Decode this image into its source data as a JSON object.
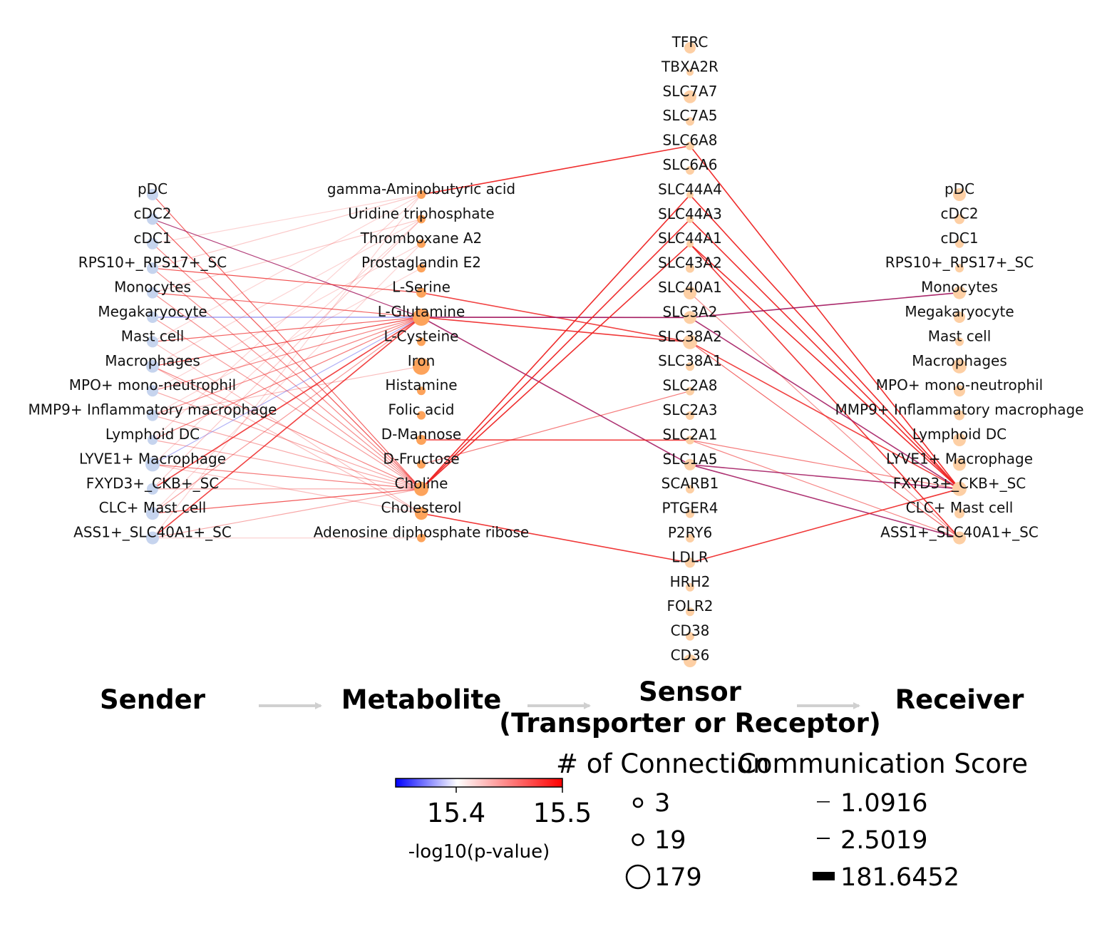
{
  "columns": {
    "sender": [
      "pDC",
      "cDC2",
      "cDC1",
      "RPS10+_RPS17+_SC",
      "Monocytes",
      "Megakaryocyte",
      "Mast cell",
      "Macrophages",
      "MPO+ mono-neutrophil",
      "MMP9+ Inflammatory macrophage",
      "Lymphoid DC",
      "LYVE1+ Macrophage",
      "FXYD3+_CKB+_SC",
      "CLC+ Mast cell",
      "ASS1+_SLC40A1+_SC"
    ],
    "metabolite": [
      "gamma-Aminobutyric acid",
      "Uridine triphosphate",
      "Thromboxane A2",
      "Prostaglandin E2",
      "L-Serine",
      "L-Glutamine",
      "L-Cysteine",
      "Iron",
      "Histamine",
      "Folic acid",
      "D-Mannose",
      "D-Fructose",
      "Choline",
      "Cholesterol",
      "Adenosine diphosphate ribose"
    ],
    "sensor": [
      "TFRC",
      "TBXA2R",
      "SLC7A7",
      "SLC7A5",
      "SLC6A8",
      "SLC6A6",
      "SLC44A4",
      "SLC44A3",
      "SLC44A1",
      "SLC43A2",
      "SLC40A1",
      "SLC3A2",
      "SLC38A2",
      "SLC38A1",
      "SLC2A8",
      "SLC2A3",
      "SLC2A1",
      "SLC1A5",
      "SCARB1",
      "PTGER4",
      "P2RY6",
      "LDLR",
      "HRH2",
      "FOLR2",
      "CD38",
      "CD36"
    ],
    "receiver": [
      "pDC",
      "cDC2",
      "cDC1",
      "RPS10+_RPS17+_SC",
      "Monocytes",
      "Megakaryocyte",
      "Mast cell",
      "Macrophages",
      "MPO+ mono-neutrophil",
      "MMP9+ Inflammatory macrophage",
      "Lymphoid DC",
      "LYVE1+ Macrophage",
      "FXYD3+_CKB+_SC",
      "CLC+ Mast cell",
      "ASS1+_SLC40A1+_SC"
    ]
  },
  "headers": {
    "sender": "Sender",
    "metabolite": "Metabolite",
    "sensor_line1": "Sensor",
    "sensor_line2": "(Transporter or Receptor)",
    "receiver": "Receiver"
  },
  "colorbar": {
    "label": "-log10(p-value)",
    "ticks": [
      "15.4",
      "15.5"
    ],
    "min_color": "#0000ff",
    "mid_color": "#ffffff",
    "max_color": "#ff0000"
  },
  "legend_connections": {
    "title": "# of Connection",
    "items": [
      {
        "label": "3",
        "value": 3
      },
      {
        "label": "19",
        "value": 19
      },
      {
        "label": "179",
        "value": 179
      }
    ]
  },
  "legend_score": {
    "title": "Communication Score",
    "items": [
      {
        "label": "1.0916",
        "value": 1.0916
      },
      {
        "label": "2.5019",
        "value": 2.5019
      },
      {
        "label": "181.6452",
        "value": 181.6452
      }
    ]
  },
  "colors": {
    "sender_node": "#c6d4ee",
    "metabolite_node": "#fda35b",
    "sensor_node": "#fdcfa4",
    "receiver_node": "#fdcfa4",
    "arrow": "#d0d0d0",
    "edge_red": "#ee2222",
    "edge_purple": "#a0105a",
    "edge_blue": "#7070ee"
  },
  "edges_sender_metabolite": [
    {
      "from": "pDC",
      "to": "Choline",
      "color": "#ee2222",
      "opacity": 0.7
    },
    {
      "from": "cDC2",
      "to": "Choline",
      "color": "#ee2222",
      "opacity": 0.75
    },
    {
      "from": "cDC2",
      "to": "L-Glutamine",
      "color": "#a0105a",
      "opacity": 0.8
    },
    {
      "from": "cDC1",
      "to": "gamma-Aminobutyric acid",
      "color": "#ee2222",
      "opacity": 0.2
    },
    {
      "from": "cDC1",
      "to": "Choline",
      "color": "#ee2222",
      "opacity": 0.55
    },
    {
      "from": "RPS10+_RPS17+_SC",
      "to": "L-Serine",
      "color": "#ee2222",
      "opacity": 0.8
    },
    {
      "from": "RPS10+_RPS17+_SC",
      "to": "Choline",
      "color": "#ee2222",
      "opacity": 0.5
    },
    {
      "from": "RPS10+_RPS17+_SC",
      "to": "gamma-Aminobutyric acid",
      "color": "#ee2222",
      "opacity": 0.25
    },
    {
      "from": "Monocytes",
      "to": "L-Glutamine",
      "color": "#ee2222",
      "opacity": 0.7
    },
    {
      "from": "Monocytes",
      "to": "Choline",
      "color": "#ee2222",
      "opacity": 0.5
    },
    {
      "from": "Monocytes",
      "to": "Uridine triphosphate",
      "color": "#ee2222",
      "opacity": 0.25
    },
    {
      "from": "Megakaryocyte",
      "to": "L-Glutamine",
      "color": "#7070ee",
      "opacity": 0.8
    },
    {
      "from": "Megakaryocyte",
      "to": "Choline",
      "color": "#ee2222",
      "opacity": 0.45
    },
    {
      "from": "Mast cell",
      "to": "L-Glutamine",
      "color": "#ee2222",
      "opacity": 0.7
    },
    {
      "from": "Mast cell",
      "to": "Cholesterol",
      "color": "#ee2222",
      "opacity": 0.3
    },
    {
      "from": "Mast cell",
      "to": "gamma-Aminobutyric acid",
      "color": "#ee2222",
      "opacity": 0.2
    },
    {
      "from": "Macrophages",
      "to": "L-Glutamine",
      "color": "#ee2222",
      "opacity": 0.8
    },
    {
      "from": "Macrophages",
      "to": "Choline",
      "color": "#ee2222",
      "opacity": 0.55
    },
    {
      "from": "Macrophages",
      "to": "Cholesterol",
      "color": "#ee2222",
      "opacity": 0.3
    },
    {
      "from": "Macrophages",
      "to": "Uridine triphosphate",
      "color": "#ee2222",
      "opacity": 0.2
    },
    {
      "from": "MPO+ mono-neutrophil",
      "to": "L-Glutamine",
      "color": "#ee2222",
      "opacity": 0.55
    },
    {
      "from": "MPO+ mono-neutrophil",
      "to": "Thromboxane A2",
      "color": "#ee2222",
      "opacity": 0.2
    },
    {
      "from": "MPO+ mono-neutrophil",
      "to": "Choline",
      "color": "#ee2222",
      "opacity": 0.4
    },
    {
      "from": "MMP9+ Inflammatory macrophage",
      "to": "L-Glutamine",
      "color": "#ee2222",
      "opacity": 0.55
    },
    {
      "from": "MMP9+ Inflammatory macrophage",
      "to": "Iron",
      "color": "#ee2222",
      "opacity": 0.3
    },
    {
      "from": "MMP9+ Inflammatory macrophage",
      "to": "Choline",
      "color": "#ee2222",
      "opacity": 0.4
    },
    {
      "from": "MMP9+ Inflammatory macrophage",
      "to": "Prostaglandin E2",
      "color": "#ee2222",
      "opacity": 0.2
    },
    {
      "from": "Lymphoid DC",
      "to": "L-Glutamine",
      "color": "#ee2222",
      "opacity": 0.6
    },
    {
      "from": "Lymphoid DC",
      "to": "gamma-Aminobutyric acid",
      "color": "#ee2222",
      "opacity": 0.2
    },
    {
      "from": "Lymphoid DC",
      "to": "Choline",
      "color": "#ee2222",
      "opacity": 0.4
    },
    {
      "from": "LYVE1+ Macrophage",
      "to": "L-Glutamine",
      "color": "#7070ee",
      "opacity": 0.55
    },
    {
      "from": "LYVE1+ Macrophage",
      "to": "Choline",
      "color": "#ee2222",
      "opacity": 0.6
    },
    {
      "from": "LYVE1+ Macrophage",
      "to": "Cholesterol",
      "color": "#ee2222",
      "opacity": 0.3
    },
    {
      "from": "LYVE1+ Macrophage",
      "to": "Uridine triphosphate",
      "color": "#ee2222",
      "opacity": 0.2
    },
    {
      "from": "FXYD3+_CKB+_SC",
      "to": "L-Glutamine",
      "color": "#ee2222",
      "opacity": 0.85
    },
    {
      "from": "FXYD3+_CKB+_SC",
      "to": "Uridine triphosphate",
      "color": "#ee2222",
      "opacity": 0.25
    },
    {
      "from": "FXYD3+_CKB+_SC",
      "to": "Choline",
      "color": "#ee2222",
      "opacity": 0.4
    },
    {
      "from": "CLC+ Mast cell",
      "to": "Choline",
      "color": "#ee2222",
      "opacity": 0.75
    },
    {
      "from": "CLC+ Mast cell",
      "to": "L-Glutamine",
      "color": "#ee2222",
      "opacity": 0.45
    },
    {
      "from": "CLC+ Mast cell",
      "to": "Thromboxane A2",
      "color": "#ee2222",
      "opacity": 0.2
    },
    {
      "from": "ASS1+_SLC40A1+_SC",
      "to": "L-Glutamine",
      "color": "#ee2222",
      "opacity": 0.85
    },
    {
      "from": "ASS1+_SLC40A1+_SC",
      "to": "Adenosine diphosphate ribose",
      "color": "#ee2222",
      "opacity": 0.2
    },
    {
      "from": "ASS1+_SLC40A1+_SC",
      "to": "gamma-Aminobutyric acid",
      "color": "#ee2222",
      "opacity": 0.2
    },
    {
      "from": "ASS1+_SLC40A1+_SC",
      "to": "Choline",
      "color": "#ee2222",
      "opacity": 0.4
    }
  ],
  "edges_metabolite_sensor": [
    {
      "from": "gamma-Aminobutyric acid",
      "to": "SLC6A8",
      "color": "#ee2222",
      "opacity": 0.95
    },
    {
      "from": "L-Serine",
      "to": "SLC38A2",
      "color": "#ee2222",
      "opacity": 0.85
    },
    {
      "from": "L-Glutamine",
      "to": "SLC3A2",
      "color": "#a0105a",
      "opacity": 0.95
    },
    {
      "from": "L-Glutamine",
      "to": "SLC38A2",
      "color": "#ee2222",
      "opacity": 0.9
    },
    {
      "from": "L-Glutamine",
      "to": "SLC1A5",
      "color": "#a0105a",
      "opacity": 0.85
    },
    {
      "from": "D-Mannose",
      "to": "SLC2A1",
      "color": "#ee2222",
      "opacity": 0.85
    },
    {
      "from": "D-Fructose",
      "to": "SLC2A8",
      "color": "#ee2222",
      "opacity": 0.6
    },
    {
      "from": "Choline",
      "to": "SLC44A4",
      "color": "#ee2222",
      "opacity": 0.95
    },
    {
      "from": "Choline",
      "to": "SLC44A3",
      "color": "#ee2222",
      "opacity": 0.95
    },
    {
      "from": "Choline",
      "to": "SLC44A1",
      "color": "#ee2222",
      "opacity": 0.95
    },
    {
      "from": "Cholesterol",
      "to": "LDLR",
      "color": "#ee2222",
      "opacity": 0.9
    }
  ],
  "edges_sensor_receiver": [
    {
      "from": "SLC6A8",
      "to": "FXYD3+_CKB+_SC",
      "color": "#ee2222",
      "opacity": 0.95
    },
    {
      "from": "SLC44A4",
      "to": "FXYD3+_CKB+_SC",
      "color": "#ee2222",
      "opacity": 0.95
    },
    {
      "from": "SLC44A3",
      "to": "FXYD3+_CKB+_SC",
      "color": "#ee2222",
      "opacity": 0.95
    },
    {
      "from": "SLC44A1",
      "to": "FXYD3+_CKB+_SC",
      "color": "#ee2222",
      "opacity": 0.95
    },
    {
      "from": "SLC44A1",
      "to": "ASS1+_SLC40A1+_SC",
      "color": "#ee2222",
      "opacity": 0.9
    },
    {
      "from": "SLC3A2",
      "to": "Monocytes",
      "color": "#a0105a",
      "opacity": 0.9
    },
    {
      "from": "SLC3A2",
      "to": "FXYD3+_CKB+_SC",
      "color": "#a0105a",
      "opacity": 0.85
    },
    {
      "from": "SLC38A2",
      "to": "FXYD3+_CKB+_SC",
      "color": "#ee2222",
      "opacity": 0.85
    },
    {
      "from": "SLC38A2",
      "to": "ASS1+_SLC40A1+_SC",
      "color": "#ee2222",
      "opacity": 0.7
    },
    {
      "from": "SLC40A1",
      "to": "ASS1+_SLC40A1+_SC",
      "color": "#ee2222",
      "opacity": 0.5
    },
    {
      "from": "SLC2A1",
      "to": "FXYD3+_CKB+_SC",
      "color": "#ee2222",
      "opacity": 0.6
    },
    {
      "from": "SLC2A1",
      "to": "ASS1+_SLC40A1+_SC",
      "color": "#ee2222",
      "opacity": 0.55
    },
    {
      "from": "SLC1A5",
      "to": "FXYD3+_CKB+_SC",
      "color": "#a0105a",
      "opacity": 0.85
    },
    {
      "from": "SLC1A5",
      "to": "ASS1+_SLC40A1+_SC",
      "color": "#a0105a",
      "opacity": 0.85
    },
    {
      "from": "LDLR",
      "to": "FXYD3+_CKB+_SC",
      "color": "#ee2222",
      "opacity": 0.9
    }
  ]
}
